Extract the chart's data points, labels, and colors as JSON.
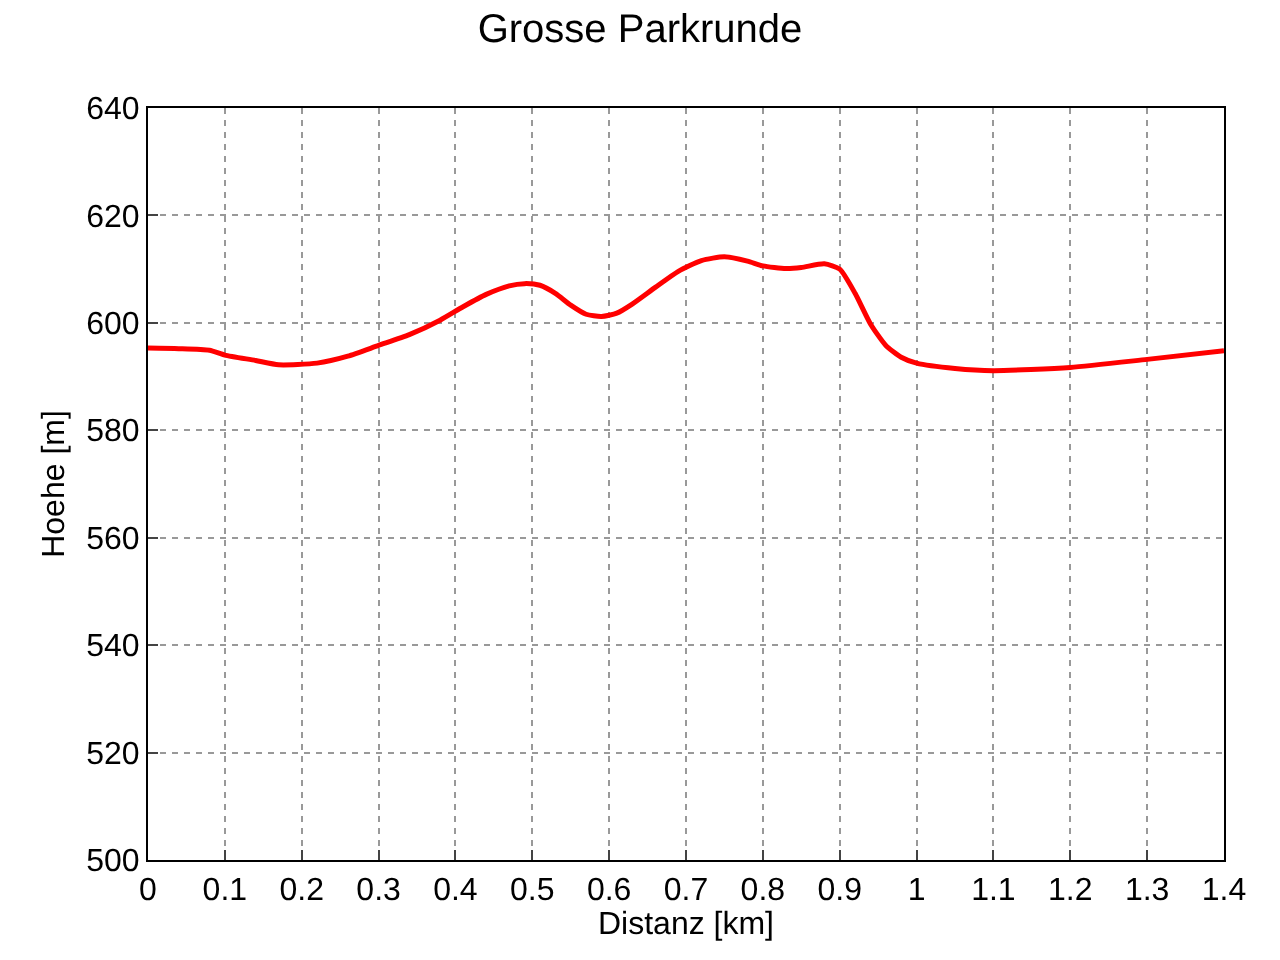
{
  "chart_data": {
    "type": "line",
    "title": "Grosse Parkrunde",
    "xlabel": "Distanz [km]",
    "ylabel": "Hoehe [m]",
    "x": [
      0,
      0.04,
      0.08,
      0.1,
      0.14,
      0.17,
      0.22,
      0.26,
      0.3,
      0.34,
      0.38,
      0.41,
      0.44,
      0.47,
      0.49,
      0.51,
      0.53,
      0.55,
      0.57,
      0.59,
      0.61,
      0.63,
      0.66,
      0.69,
      0.72,
      0.75,
      0.78,
      0.8,
      0.83,
      0.85,
      0.88,
      0.9,
      0.92,
      0.94,
      0.96,
      0.98,
      1.0,
      1.05,
      1.1,
      1.2,
      1.3,
      1.4
    ],
    "series": [
      {
        "color": "#ff0000",
        "values": [
          595.3,
          595.2,
          594.9,
          594,
          593,
          592.2,
          592.5,
          593.8,
          595.8,
          597.8,
          600.5,
          603,
          605.3,
          606.9,
          607.3,
          607,
          605.5,
          603.3,
          601.6,
          601.2,
          601.8,
          603.5,
          606.6,
          609.6,
          611.6,
          612.3,
          611.5,
          610.6,
          610.1,
          610.3,
          611,
          610,
          605.5,
          599.8,
          595.8,
          593.6,
          592.5,
          591.5,
          591.1,
          591.7,
          593.2,
          594.8
        ]
      }
    ],
    "xlim": [
      0,
      1.4
    ],
    "ylim": [
      500,
      640
    ],
    "xticks": [
      0,
      0.1,
      0.2,
      0.3,
      0.4,
      0.5,
      0.6,
      0.7,
      0.8,
      0.9,
      1,
      1.1,
      1.2,
      1.3,
      1.4
    ],
    "yticks": [
      500,
      520,
      540,
      560,
      580,
      600,
      620,
      640
    ],
    "grid": true,
    "legend": false,
    "marker": "none",
    "line_style": "solid"
  }
}
